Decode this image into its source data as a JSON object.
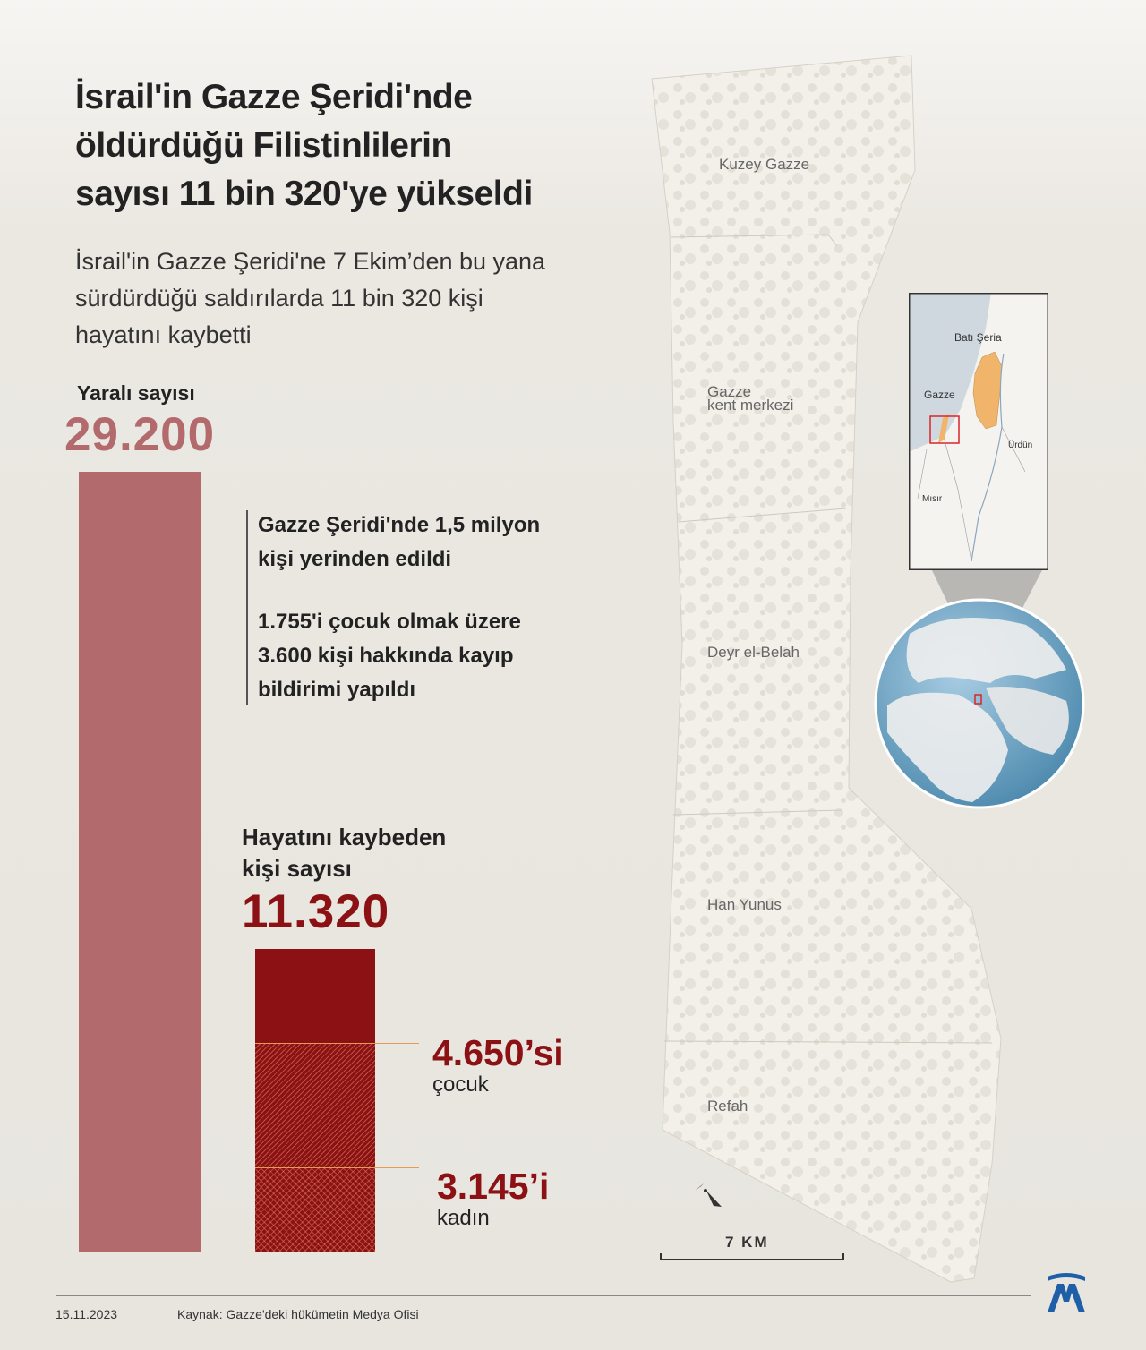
{
  "title": {
    "line1": "İsrail'in Gazze Şeridi'nde",
    "line2": "öldürdüğü Filistinlilerin",
    "line3": "sayısı 11 bin 320'ye yükseldi"
  },
  "subtitle": {
    "line1": "İsrail'in Gazze Şeridi'ne 7 Ekim’den bu yana",
    "line2": "sürdürdüğü saldırılarda 11 bin 320 kişi",
    "line3": "hayatını kaybetti"
  },
  "injured": {
    "label": "Yaralı sayısı",
    "value": "29.200"
  },
  "notes": {
    "note1": {
      "line1": "Gazze Şeridi'nde 1,5 milyon",
      "line2": "kişi yerinden edildi"
    },
    "note2": {
      "line1": "1.755'i çocuk olmak üzere",
      "line2": "3.600 kişi hakkında kayıp",
      "line3": "bildirimi yapıldı"
    }
  },
  "killed": {
    "label_line1": "Hayatını kaybeden",
    "label_line2": "kişi sayısı",
    "value": "11.320",
    "children": {
      "value": "4.650’si",
      "label": "çocuk"
    },
    "women": {
      "value": "3.145’i",
      "label": "kadın"
    }
  },
  "chart_data": {
    "type": "bar",
    "categories": [
      "Yaralı sayısı",
      "Hayatını kaybeden kişi sayısı"
    ],
    "values": [
      29200,
      11320
    ],
    "breakdown": {
      "çocuk": 4650,
      "kadın": 3145
    }
  },
  "map": {
    "places": {
      "north": "Kuzey Gazze",
      "city_line1": "Gazze",
      "city_line2": "kent merkezi",
      "deir": "Deyr el-Belah",
      "khan": "Han Yunus",
      "rafah": "Refah"
    },
    "scale": "7 KM",
    "inset": {
      "west_bank": "Batı Şeria",
      "gaza": "Gazze",
      "jordan": "Ürdün",
      "egypt": "Mısır"
    }
  },
  "colors": {
    "injured": "#b36a6d",
    "killed": "#8b1114",
    "land": "#f3f0ea",
    "water": "#cfd8de",
    "west_bank": "#f0b56a",
    "accent_line": "#e59a55"
  },
  "footer": {
    "date": "15.11.2023",
    "source": "Kaynak: Gazze'deki hükümetin Medya Ofisi"
  },
  "logo": "aa-logo-icon"
}
